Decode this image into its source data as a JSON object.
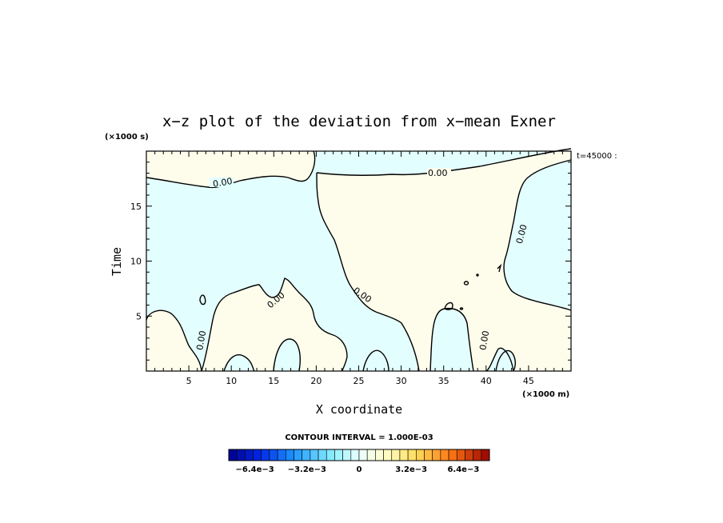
{
  "chart_data": {
    "type": "contour",
    "title": "x−z plot of the deviation from x−mean Exner",
    "xlabel": "X coordinate",
    "ylabel": "Time",
    "x_unit": "(×1000 m)",
    "y_unit": "(×1000 s)",
    "time_label": "t=45000 :",
    "xlim": [
      0,
      50
    ],
    "ylim": [
      0,
      20
    ],
    "x_ticks": [
      5,
      10,
      15,
      20,
      25,
      30,
      35,
      40,
      45
    ],
    "y_ticks": [
      5,
      10,
      15
    ],
    "contour_levels": [
      0.0
    ],
    "contour_labels": [
      "0.00",
      "0.00",
      "0.00",
      "0.00",
      "0.00",
      "0.00",
      "0.00"
    ],
    "contour_interval_text": "CONTOUR INTERVAL = 1.000E-03",
    "colorbar": {
      "min": -0.008,
      "max": 0.008,
      "n_bins": 32,
      "tick_labels": [
        "−6.4e−3",
        "−3.2e−3",
        "0",
        "3.2e−3",
        "6.4e−3"
      ],
      "tick_values": [
        -0.0064,
        -0.0032,
        0,
        0.0032,
        0.0064
      ]
    },
    "fill_colors": {
      "negative": "#e3fefe",
      "positive": "#fefdec"
    }
  }
}
